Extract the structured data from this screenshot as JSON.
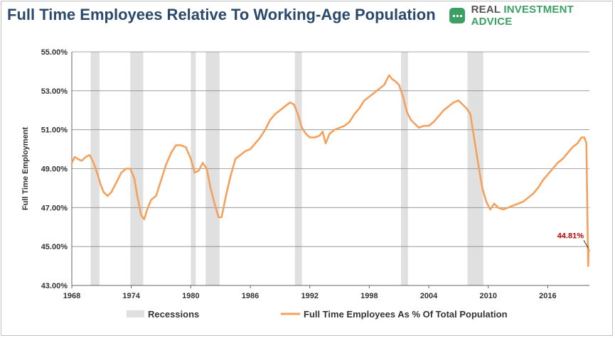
{
  "header": {
    "title": "Full Time Employees Relative To Working-Age Population",
    "brand_part1": "REAL ",
    "brand_part2": "INVESTMENT ADVICE",
    "brand_icon": "chat-bubble-icon",
    "brand_color": "#3c9f64"
  },
  "chart_data": {
    "type": "line",
    "title": "Full Time Employees Relative To Working-Age Population",
    "ylabel": "Full Time Employment",
    "xlabel": "",
    "xlim": [
      1968,
      2020.2
    ],
    "ylim": [
      43,
      55
    ],
    "yticks": [
      43,
      45,
      47,
      49,
      51,
      53,
      55
    ],
    "ytick_labels": [
      "43.00%",
      "45.00%",
      "47.00%",
      "49.00%",
      "51.00%",
      "53.00%",
      "55.00%"
    ],
    "xticks": [
      1968,
      1974,
      1980,
      1986,
      1992,
      1998,
      2004,
      2010,
      2016
    ],
    "xtick_labels": [
      "1968",
      "1974",
      "1980",
      "1986",
      "1992",
      "1998",
      "2004",
      "2010",
      "2016"
    ],
    "grid": "horizontal",
    "legend_position": "bottom",
    "series_color": "#f4a15d",
    "recession_color": "#e0e0e0",
    "recessions": [
      [
        1969.9,
        1970.8
      ],
      [
        1973.9,
        1975.2
      ],
      [
        1980.0,
        1980.5
      ],
      [
        1981.5,
        1982.9
      ],
      [
        1990.5,
        1991.2
      ],
      [
        2001.2,
        2001.9
      ],
      [
        2007.9,
        2009.5
      ]
    ],
    "series": [
      {
        "name": "Full Time Employees As % Of Total Population",
        "x": [
          1968.0,
          1968.3,
          1968.6,
          1969.0,
          1969.4,
          1969.8,
          1970.2,
          1970.6,
          1970.9,
          1971.2,
          1971.6,
          1972.0,
          1972.5,
          1973.0,
          1973.5,
          1973.9,
          1974.3,
          1974.6,
          1975.0,
          1975.3,
          1975.6,
          1976.0,
          1976.5,
          1977.0,
          1977.5,
          1978.0,
          1978.5,
          1979.0,
          1979.5,
          1980.0,
          1980.4,
          1980.8,
          1981.2,
          1981.6,
          1982.0,
          1982.4,
          1982.8,
          1983.1,
          1983.5,
          1984.0,
          1984.5,
          1985.0,
          1985.5,
          1986.0,
          1986.5,
          1987.0,
          1987.5,
          1988.0,
          1988.5,
          1989.0,
          1989.5,
          1990.0,
          1990.4,
          1990.8,
          1991.2,
          1991.6,
          1992.0,
          1992.5,
          1993.0,
          1993.3,
          1993.6,
          1994.0,
          1994.5,
          1995.0,
          1995.5,
          1996.0,
          1996.5,
          1997.0,
          1997.5,
          1998.0,
          1998.5,
          1999.0,
          1999.5,
          2000.0,
          2000.3,
          2000.6,
          2001.0,
          2001.4,
          2001.8,
          2002.2,
          2002.6,
          2003.0,
          2003.5,
          2004.0,
          2004.5,
          2005.0,
          2005.5,
          2006.0,
          2006.5,
          2007.0,
          2007.4,
          2007.8,
          2008.2,
          2008.6,
          2009.0,
          2009.4,
          2009.8,
          2010.2,
          2010.6,
          2011.0,
          2011.5,
          2012.0,
          2012.5,
          2013.0,
          2013.5,
          2014.0,
          2014.5,
          2015.0,
          2015.5,
          2016.0,
          2016.5,
          2017.0,
          2017.5,
          2018.0,
          2018.5,
          2019.0,
          2019.4,
          2019.7,
          2019.9,
          2020.0,
          2020.08,
          2020.12,
          2020.2
        ],
        "values": [
          49.3,
          49.6,
          49.5,
          49.4,
          49.6,
          49.7,
          49.3,
          48.7,
          48.2,
          47.8,
          47.6,
          47.8,
          48.3,
          48.8,
          49.0,
          49.0,
          48.5,
          47.6,
          46.6,
          46.4,
          46.9,
          47.4,
          47.6,
          48.4,
          49.2,
          49.8,
          50.2,
          50.2,
          50.1,
          49.5,
          48.8,
          48.9,
          49.3,
          49.0,
          48.0,
          47.2,
          46.5,
          46.5,
          47.5,
          48.6,
          49.5,
          49.7,
          49.9,
          50.0,
          50.3,
          50.6,
          51.0,
          51.5,
          51.8,
          52.0,
          52.2,
          52.4,
          52.3,
          51.8,
          51.1,
          50.8,
          50.6,
          50.6,
          50.7,
          50.9,
          50.3,
          50.8,
          51.0,
          51.1,
          51.2,
          51.4,
          51.8,
          52.1,
          52.5,
          52.7,
          52.9,
          53.1,
          53.3,
          53.8,
          53.6,
          53.5,
          53.3,
          52.7,
          51.9,
          51.5,
          51.3,
          51.1,
          51.2,
          51.2,
          51.4,
          51.7,
          52.0,
          52.2,
          52.4,
          52.5,
          52.3,
          52.1,
          51.8,
          50.5,
          49.2,
          48.0,
          47.3,
          46.9,
          47.2,
          47.0,
          46.9,
          47.0,
          47.1,
          47.2,
          47.3,
          47.5,
          47.7,
          48.0,
          48.4,
          48.7,
          49.0,
          49.3,
          49.5,
          49.8,
          50.1,
          50.3,
          50.6,
          50.6,
          50.3,
          46.5,
          44.0,
          44.8,
          44.81
        ]
      }
    ],
    "annotation": {
      "x": 2020.2,
      "y": 44.81,
      "label": "44.81%"
    }
  },
  "legend": {
    "recessions_label": "Recessions",
    "series_label": "Full Time Employees As % Of Total Population"
  }
}
